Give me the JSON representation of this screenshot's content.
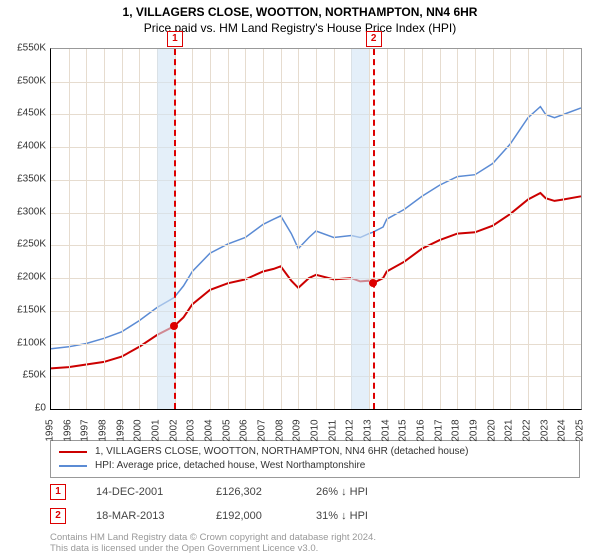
{
  "title": "1, VILLAGERS CLOSE, WOOTTON, NORTHAMPTON, NN4 6HR",
  "subtitle": "Price paid vs. HM Land Registry's House Price Index (HPI)",
  "chart": {
    "type": "line",
    "background_color": "#ffffff",
    "grid_color": "#e6dccf",
    "axis_color": "#000000",
    "shade_color": "rgba(210,228,245,0.6)",
    "ylim": [
      0,
      550000
    ],
    "ytick_step": 50000,
    "yticks": [
      "£0",
      "£50K",
      "£100K",
      "£150K",
      "£200K",
      "£250K",
      "£300K",
      "£350K",
      "£400K",
      "£450K",
      "£500K",
      "£550K"
    ],
    "xlim": [
      1995,
      2025
    ],
    "xticks": [
      "1995",
      "1996",
      "1997",
      "1998",
      "1999",
      "2000",
      "2001",
      "2002",
      "2003",
      "2004",
      "2005",
      "2006",
      "2007",
      "2008",
      "2009",
      "2010",
      "2011",
      "2012",
      "2013",
      "2014",
      "2015",
      "2016",
      "2017",
      "2018",
      "2019",
      "2020",
      "2021",
      "2022",
      "2023",
      "2024",
      "2025"
    ],
    "shade_ranges": [
      [
        2001,
        2002
      ],
      [
        2012,
        2013
      ]
    ],
    "marker_lines": [
      2001.96,
      2013.21
    ],
    "series": [
      {
        "name": "price_paid",
        "label": "1, VILLAGERS CLOSE, WOOTTON, NORTHAMPTON, NN4 6HR (detached house)",
        "color": "#cc0000",
        "line_width": 2,
        "data": [
          [
            1995,
            62000
          ],
          [
            1996,
            64000
          ],
          [
            1997,
            68000
          ],
          [
            1998,
            72000
          ],
          [
            1999,
            80000
          ],
          [
            2000,
            95000
          ],
          [
            2001,
            113000
          ],
          [
            2001.96,
            126302
          ],
          [
            2002.5,
            140000
          ],
          [
            2003,
            160000
          ],
          [
            2004,
            182000
          ],
          [
            2005,
            192000
          ],
          [
            2006,
            198000
          ],
          [
            2007,
            210000
          ],
          [
            2007.6,
            214000
          ],
          [
            2008,
            218000
          ],
          [
            2008.6,
            196000
          ],
          [
            2009,
            185000
          ],
          [
            2009.6,
            200000
          ],
          [
            2010,
            205000
          ],
          [
            2011,
            198000
          ],
          [
            2012,
            200000
          ],
          [
            2012.5,
            195000
          ],
          [
            2013,
            196000
          ],
          [
            2013.21,
            192000
          ],
          [
            2013.8,
            200000
          ],
          [
            2014,
            210000
          ],
          [
            2015,
            225000
          ],
          [
            2016,
            245000
          ],
          [
            2017,
            258000
          ],
          [
            2018,
            268000
          ],
          [
            2019,
            270000
          ],
          [
            2020,
            280000
          ],
          [
            2021,
            298000
          ],
          [
            2022,
            320000
          ],
          [
            2022.7,
            330000
          ],
          [
            2023,
            322000
          ],
          [
            2023.5,
            318000
          ],
          [
            2024,
            320000
          ],
          [
            2025,
            325000
          ]
        ]
      },
      {
        "name": "hpi",
        "label": "HPI: Average price, detached house, West Northamptonshire",
        "color": "#5b8bd4",
        "line_width": 1.5,
        "data": [
          [
            1995,
            92000
          ],
          [
            1996,
            95000
          ],
          [
            1997,
            100000
          ],
          [
            1998,
            108000
          ],
          [
            1999,
            118000
          ],
          [
            2000,
            135000
          ],
          [
            2001,
            155000
          ],
          [
            2001.96,
            170000
          ],
          [
            2002.5,
            188000
          ],
          [
            2003,
            210000
          ],
          [
            2004,
            238000
          ],
          [
            2005,
            252000
          ],
          [
            2006,
            262000
          ],
          [
            2007,
            282000
          ],
          [
            2007.6,
            290000
          ],
          [
            2008,
            295000
          ],
          [
            2008.6,
            268000
          ],
          [
            2009,
            245000
          ],
          [
            2009.6,
            262000
          ],
          [
            2010,
            272000
          ],
          [
            2011,
            262000
          ],
          [
            2012,
            265000
          ],
          [
            2012.5,
            262000
          ],
          [
            2013,
            268000
          ],
          [
            2013.21,
            270000
          ],
          [
            2013.8,
            278000
          ],
          [
            2014,
            290000
          ],
          [
            2015,
            305000
          ],
          [
            2016,
            325000
          ],
          [
            2017,
            342000
          ],
          [
            2018,
            355000
          ],
          [
            2019,
            358000
          ],
          [
            2020,
            375000
          ],
          [
            2021,
            405000
          ],
          [
            2022,
            445000
          ],
          [
            2022.7,
            462000
          ],
          [
            2023,
            450000
          ],
          [
            2023.5,
            445000
          ],
          [
            2024,
            450000
          ],
          [
            2025,
            460000
          ]
        ]
      }
    ],
    "marker_points": [
      {
        "n": "1",
        "x": 2001.96,
        "y": 126302
      },
      {
        "n": "2",
        "x": 2013.21,
        "y": 192000
      }
    ]
  },
  "legend": {
    "items": [
      {
        "color": "#cc0000",
        "label": "1, VILLAGERS CLOSE, WOOTTON, NORTHAMPTON, NN4 6HR (detached house)"
      },
      {
        "color": "#5b8bd4",
        "label": "HPI: Average price, detached house, West Northamptonshire"
      }
    ]
  },
  "events": [
    {
      "n": "1",
      "date": "14-DEC-2001",
      "price": "£126,302",
      "pct": "26% ↓ HPI"
    },
    {
      "n": "2",
      "date": "18-MAR-2013",
      "price": "£192,000",
      "pct": "31% ↓ HPI"
    }
  ],
  "footer": {
    "line1": "Contains HM Land Registry data © Crown copyright and database right 2024.",
    "line2": "This data is licensed under the Open Government Licence v3.0."
  }
}
